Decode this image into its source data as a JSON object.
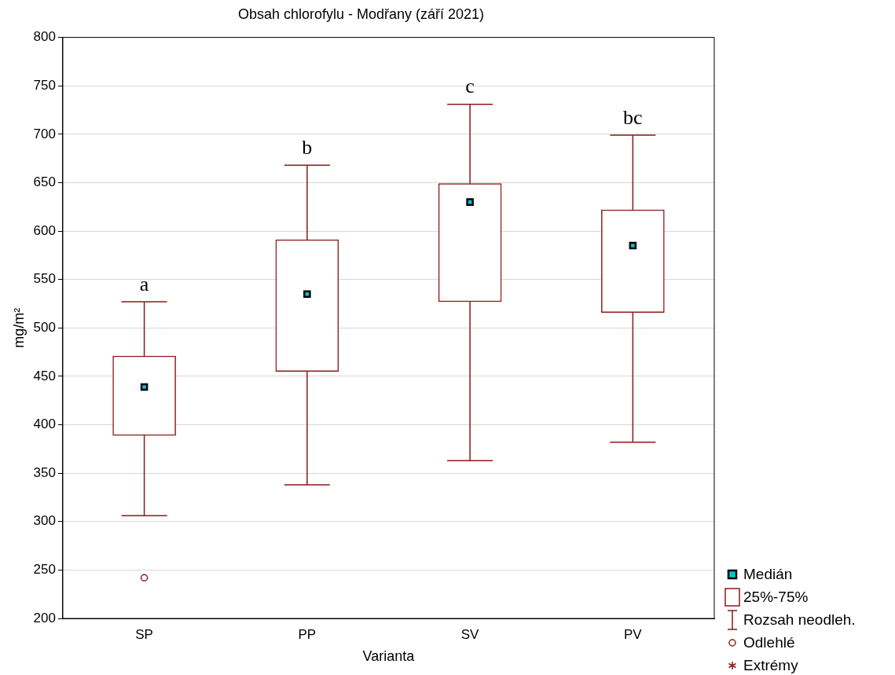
{
  "chart_data": {
    "type": "box",
    "title": "Obsah chlorofylu - Modřany (září 2021)",
    "xlabel": "Varianta",
    "ylabel": "mg/m²",
    "categories": [
      "SP",
      "PP",
      "SV",
      "PV"
    ],
    "series": [
      {
        "type": "box",
        "color": "#8b1a1a",
        "boxes": [
          {
            "low": 306,
            "q1": 389,
            "median": 439,
            "q3": 471,
            "high": 527,
            "outliers": [
              242
            ]
          },
          {
            "low": 338,
            "q1": 455,
            "median": 535,
            "q3": 591,
            "high": 668
          },
          {
            "low": 363,
            "q1": 527,
            "median": 630,
            "q3": 649,
            "high": 731
          },
          {
            "low": 382,
            "q1": 516,
            "median": 585,
            "q3": 622,
            "high": 699
          }
        ]
      }
    ],
    "ylim": [
      200,
      800
    ],
    "yticks": [
      200,
      250,
      300,
      350,
      400,
      450,
      500,
      550,
      600,
      650,
      700,
      750,
      800
    ],
    "grid": "y",
    "annotations": [
      "a",
      "b",
      "c",
      "bc",
      "Medián",
      "25%-75%",
      "Rozsah neodleh.",
      "Odlehlé",
      "Extrémy"
    ]
  }
}
